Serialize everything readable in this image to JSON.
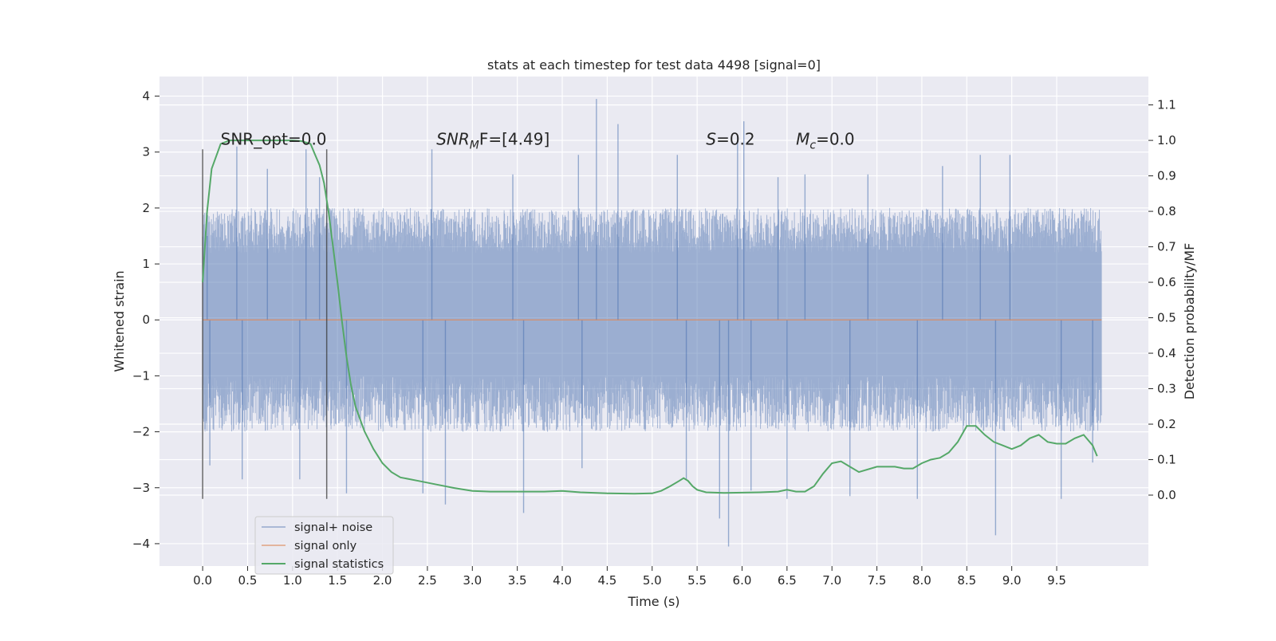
{
  "chart_data": {
    "type": "line",
    "title": "stats at each timestep for test data 4498 [signal=0]",
    "xlabel": "Time (s)",
    "ylabel": "Whitened strain",
    "ylabel_right": "Detection probability/MF",
    "xlim": [
      -0.48,
      10.52
    ],
    "ylim": [
      -4.4,
      4.35
    ],
    "ylim_right": [
      -0.2,
      1.18
    ],
    "x_ticks": [
      0.0,
      0.5,
      1.0,
      1.5,
      2.0,
      2.5,
      3.0,
      3.5,
      4.0,
      4.5,
      5.0,
      5.5,
      6.0,
      6.5,
      7.0,
      7.5,
      8.0,
      8.5,
      9.0,
      9.5
    ],
    "x_tick_labels": [
      "0.0",
      "0.5",
      "1.0",
      "1.5",
      "2.0",
      "2.5",
      "3.0",
      "3.5",
      "4.0",
      "4.5",
      "5.0",
      "5.5",
      "6.0",
      "6.5",
      "7.0",
      "7.5",
      "8.0",
      "8.5",
      "9.0",
      "9.5"
    ],
    "y_ticks": [
      4,
      3,
      2,
      1,
      0,
      -1,
      -2,
      -3,
      -4
    ],
    "y_tick_labels": [
      "4",
      "3",
      "2",
      "1",
      "0",
      "−1",
      "−2",
      "−3",
      "−4"
    ],
    "y_right_ticks": [
      1.1,
      1.0,
      0.9,
      0.8,
      0.7,
      0.6,
      0.5,
      0.4,
      0.3,
      0.2,
      0.1,
      0.0
    ],
    "y_right_tick_labels": [
      "1.1",
      "1.0",
      "0.9",
      "0.8",
      "0.7",
      "0.6",
      "0.5",
      "0.4",
      "0.3",
      "0.2",
      "0.1",
      "0.0"
    ],
    "grid": true,
    "legend_position": "bottom-left",
    "annotations": [
      {
        "text": "SNR_opt=0.0",
        "x": 0.2,
        "y": 3.1
      },
      {
        "text": "SNR",
        "sub": "M",
        "suffix": "F=[4.49]",
        "italic": true,
        "x": 2.6,
        "y": 3.1
      },
      {
        "text": "S",
        "suffix": "=0.2",
        "italic": true,
        "x": 5.6,
        "y": 3.1
      },
      {
        "text": "M",
        "sub": "c",
        "suffix": "=0.0",
        "italic": true,
        "x": 6.6,
        "y": 3.1
      }
    ],
    "vlines": [
      {
        "x": 0.0,
        "ymin": -3.2,
        "ymax": 3.05
      },
      {
        "x": 1.38,
        "ymin": -3.2,
        "ymax": 3.05
      }
    ],
    "series": [
      {
        "name": "signal+ noise",
        "color": "#4c72b0",
        "axis": "left",
        "style": "noise",
        "x_range": [
          0.0,
          10.0
        ],
        "typical_high": [
          1.2,
          2.0
        ],
        "typical_low": [
          -1.0,
          -2.0
        ],
        "peaks": [
          [
            0.05,
            1.5
          ],
          [
            0.38,
            3.1
          ],
          [
            0.72,
            2.7
          ],
          [
            1.15,
            3.05
          ],
          [
            1.3,
            2.55
          ],
          [
            2.55,
            3.05
          ],
          [
            3.45,
            2.6
          ],
          [
            4.18,
            2.95
          ],
          [
            4.38,
            3.95
          ],
          [
            4.62,
            3.5
          ],
          [
            5.28,
            2.95
          ],
          [
            5.95,
            3.3
          ],
          [
            6.02,
            3.55
          ],
          [
            6.4,
            2.55
          ],
          [
            6.7,
            2.6
          ],
          [
            7.4,
            2.6
          ],
          [
            8.23,
            2.75
          ],
          [
            8.65,
            2.95
          ],
          [
            8.98,
            2.95
          ]
        ],
        "troughs": [
          [
            0.08,
            -2.6
          ],
          [
            0.44,
            -2.85
          ],
          [
            1.08,
            -2.85
          ],
          [
            1.6,
            -3.1
          ],
          [
            2.45,
            -3.1
          ],
          [
            2.7,
            -3.3
          ],
          [
            3.57,
            -3.45
          ],
          [
            4.22,
            -2.65
          ],
          [
            5.38,
            -2.85
          ],
          [
            5.75,
            -3.55
          ],
          [
            5.85,
            -4.05
          ],
          [
            6.1,
            -3.05
          ],
          [
            6.5,
            -3.2
          ],
          [
            7.2,
            -3.15
          ],
          [
            7.95,
            -3.2
          ],
          [
            8.82,
            -3.85
          ],
          [
            9.55,
            -3.2
          ],
          [
            9.9,
            -2.55
          ]
        ]
      },
      {
        "name": "signal only",
        "color": "#dd8452",
        "axis": "left",
        "x": [
          0.0,
          10.0
        ],
        "y": [
          0.0,
          0.0
        ]
      },
      {
        "name": "signal statistics",
        "color": "#55a868",
        "axis": "right",
        "x": [
          0.0,
          0.05,
          0.1,
          0.2,
          0.3,
          0.5,
          0.8,
          1.0,
          1.1,
          1.2,
          1.25,
          1.3,
          1.35,
          1.4,
          1.45,
          1.5,
          1.55,
          1.6,
          1.65,
          1.7,
          1.8,
          1.9,
          2.0,
          2.1,
          2.2,
          2.4,
          2.6,
          2.8,
          3.0,
          3.2,
          3.5,
          3.8,
          4.0,
          4.2,
          4.5,
          4.8,
          5.0,
          5.1,
          5.2,
          5.3,
          5.35,
          5.4,
          5.45,
          5.5,
          5.6,
          5.8,
          6.0,
          6.2,
          6.4,
          6.5,
          6.6,
          6.7,
          6.8,
          6.9,
          7.0,
          7.1,
          7.2,
          7.3,
          7.5,
          7.7,
          7.8,
          7.9,
          8.0,
          8.1,
          8.2,
          8.3,
          8.4,
          8.5,
          8.6,
          8.7,
          8.8,
          8.9,
          9.0,
          9.1,
          9.2,
          9.3,
          9.4,
          9.5,
          9.6,
          9.7,
          9.8,
          9.9,
          9.95
        ],
        "y": [
          0.6,
          0.8,
          0.92,
          0.99,
          1.0,
          1.0,
          1.0,
          1.0,
          0.998,
          0.99,
          0.96,
          0.93,
          0.88,
          0.8,
          0.7,
          0.6,
          0.49,
          0.39,
          0.31,
          0.25,
          0.18,
          0.13,
          0.09,
          0.065,
          0.05,
          0.04,
          0.03,
          0.02,
          0.012,
          0.01,
          0.01,
          0.01,
          0.012,
          0.008,
          0.005,
          0.004,
          0.005,
          0.012,
          0.025,
          0.04,
          0.048,
          0.04,
          0.025,
          0.015,
          0.008,
          0.006,
          0.007,
          0.008,
          0.01,
          0.015,
          0.01,
          0.01,
          0.025,
          0.06,
          0.09,
          0.095,
          0.08,
          0.065,
          0.08,
          0.08,
          0.075,
          0.075,
          0.09,
          0.1,
          0.105,
          0.12,
          0.15,
          0.195,
          0.195,
          0.17,
          0.15,
          0.14,
          0.13,
          0.14,
          0.16,
          0.17,
          0.15,
          0.145,
          0.145,
          0.16,
          0.17,
          0.14,
          0.11
        ]
      }
    ]
  }
}
